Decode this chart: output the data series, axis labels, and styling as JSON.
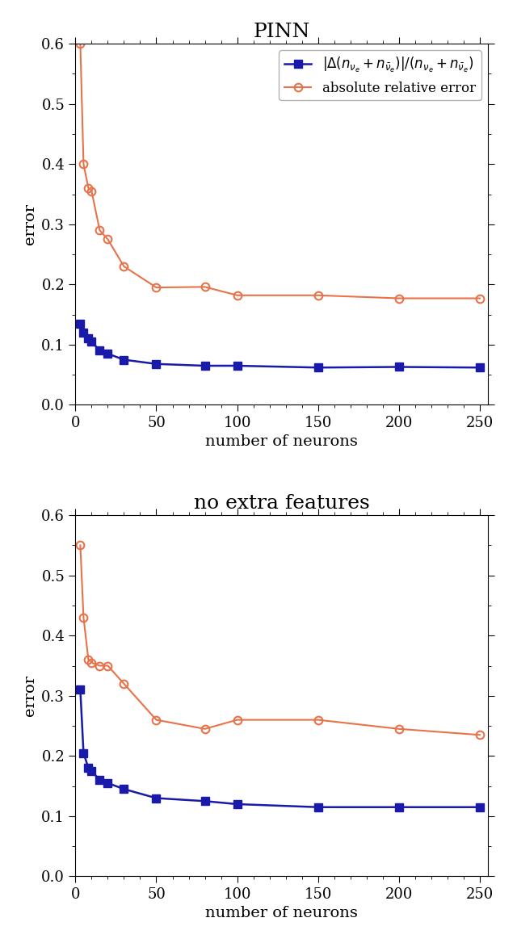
{
  "title1": "PINN",
  "title2": "no extra features",
  "xlabel": "number of neurons",
  "ylabel": "error",
  "ylim": [
    0.0,
    0.6
  ],
  "yticks": [
    0.0,
    0.1,
    0.2,
    0.3,
    0.4,
    0.5,
    0.6
  ],
  "xticks": [
    0,
    50,
    100,
    150,
    200,
    250
  ],
  "neurons": [
    3,
    5,
    8,
    10,
    15,
    20,
    30,
    50,
    80,
    100,
    150,
    200,
    250
  ],
  "pinn_blue": [
    0.135,
    0.12,
    0.11,
    0.105,
    0.09,
    0.085,
    0.075,
    0.068,
    0.065,
    0.065,
    0.062,
    0.063,
    0.062
  ],
  "pinn_orange": [
    0.6,
    0.4,
    0.36,
    0.355,
    0.29,
    0.275,
    0.23,
    0.195,
    0.196,
    0.182,
    0.182,
    0.177,
    0.177
  ],
  "nef_blue": [
    0.31,
    0.205,
    0.18,
    0.175,
    0.16,
    0.155,
    0.145,
    0.13,
    0.125,
    0.12,
    0.115,
    0.115,
    0.115
  ],
  "nef_orange": [
    0.55,
    0.43,
    0.36,
    0.355,
    0.35,
    0.35,
    0.32,
    0.26,
    0.245,
    0.26,
    0.26,
    0.245,
    0.235
  ],
  "blue_color": "#1a1aaa",
  "orange_color": "#e8724a",
  "legend_label_blue": "$|\\Delta(n_{\\nu_e} + n_{\\bar{\\nu}_e})|/(n_{\\nu_e} + n_{\\bar{\\nu}_e})$",
  "legend_label_orange": "absolute relative error",
  "title_fontsize": 18,
  "label_fontsize": 14,
  "tick_fontsize": 13,
  "legend_fontsize": 12
}
